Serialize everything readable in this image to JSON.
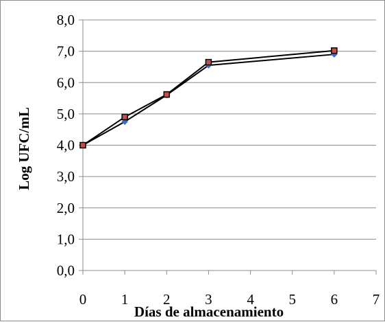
{
  "chart_data": {
    "type": "line",
    "title": "",
    "xlabel": "Días de almacenamiento",
    "ylabel": "Log UFC/mL",
    "xlim": [
      0,
      7
    ],
    "ylim": [
      0,
      8
    ],
    "x_ticks": [
      "0",
      "1",
      "2",
      "3",
      "4",
      "5",
      "6",
      "7"
    ],
    "y_ticks": [
      "0,0",
      "1,0",
      "2,0",
      "3,0",
      "4,0",
      "5,0",
      "6,0",
      "7,0",
      "8,0"
    ],
    "grid": "horizontal",
    "legend": "none",
    "series": [
      {
        "marker": "diamond",
        "color": "#3b6fc2",
        "x": [
          0,
          1,
          2,
          3,
          6
        ],
        "y": [
          4.0,
          4.75,
          5.6,
          6.55,
          6.9
        ]
      },
      {
        "marker": "square",
        "color": "#c0504d",
        "x": [
          0,
          1,
          2,
          3,
          6
        ],
        "y": [
          4.0,
          4.9,
          5.62,
          6.65,
          7.02
        ]
      }
    ]
  }
}
